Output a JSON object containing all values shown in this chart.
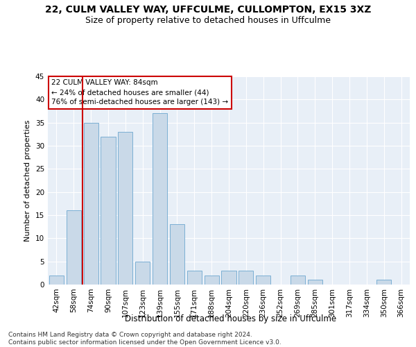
{
  "title1": "22, CULM VALLEY WAY, UFFCULME, CULLOMPTON, EX15 3XZ",
  "title2": "Size of property relative to detached houses in Uffculme",
  "xlabel": "Distribution of detached houses by size in Uffculme",
  "ylabel": "Number of detached properties",
  "categories": [
    "42sqm",
    "58sqm",
    "74sqm",
    "90sqm",
    "107sqm",
    "123sqm",
    "139sqm",
    "155sqm",
    "171sqm",
    "188sqm",
    "204sqm",
    "220sqm",
    "236sqm",
    "252sqm",
    "269sqm",
    "285sqm",
    "301sqm",
    "317sqm",
    "334sqm",
    "350sqm",
    "366sqm"
  ],
  "values": [
    2,
    16,
    35,
    32,
    33,
    5,
    37,
    13,
    3,
    2,
    3,
    3,
    2,
    0,
    2,
    1,
    0,
    0,
    0,
    1,
    0
  ],
  "bar_color": "#c9d9e8",
  "bar_edge_color": "#7bafd4",
  "vline_color": "#cc0000",
  "vline_pos": 1.5,
  "annotation_text": "22 CULM VALLEY WAY: 84sqm\n← 24% of detached houses are smaller (44)\n76% of semi-detached houses are larger (143) →",
  "annotation_box_color": "white",
  "annotation_box_edge": "#cc0000",
  "ylim": [
    0,
    45
  ],
  "yticks": [
    0,
    5,
    10,
    15,
    20,
    25,
    30,
    35,
    40,
    45
  ],
  "bg_color": "#e8eff7",
  "footer": "Contains HM Land Registry data © Crown copyright and database right 2024.\nContains public sector information licensed under the Open Government Licence v3.0.",
  "title1_fontsize": 10,
  "title2_fontsize": 9,
  "xlabel_fontsize": 8.5,
  "ylabel_fontsize": 8,
  "tick_fontsize": 7.5,
  "footer_fontsize": 6.5,
  "ann_fontsize": 7.5
}
